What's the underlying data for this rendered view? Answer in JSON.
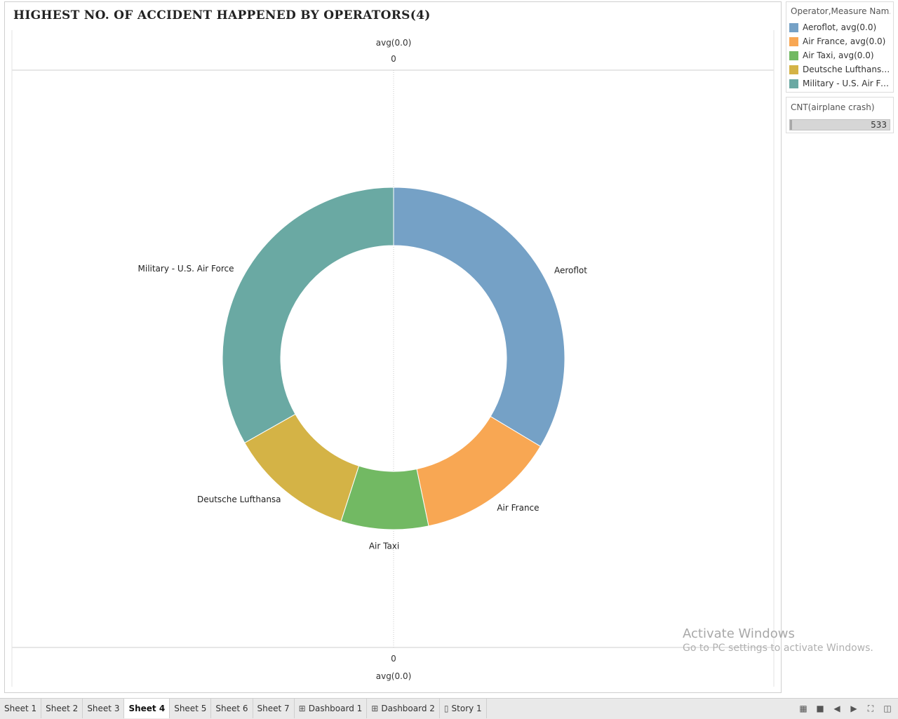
{
  "chart_data": {
    "type": "pie",
    "title": "HIGHEST NO. OF ACCIDENT HAPPENED BY OPERATORS(4)",
    "top_axis": {
      "label": "avg(0.0)",
      "tick": "0"
    },
    "bottom_axis": {
      "label": "avg(0.0)",
      "tick": "0"
    },
    "slices": [
      {
        "name": "Aeroflot",
        "value": 179,
        "color": "#75a1c6"
      },
      {
        "name": "Air France",
        "value": 70,
        "color": "#f8a753"
      },
      {
        "name": "Air Taxi",
        "value": 44,
        "color": "#72b963"
      },
      {
        "name": "Deutsche Lufthansa",
        "value": 63,
        "color": "#d4b346"
      },
      {
        "name": "Military - U.S. Air Force",
        "value": 177,
        "color": "#6aa9a3"
      }
    ],
    "legend": {
      "title": "Operator,Measure Nam...",
      "items": [
        {
          "label": "Aeroflot, avg(0.0)",
          "color": "#75a1c6"
        },
        {
          "label": "Air France, avg(0.0)",
          "color": "#f8a753"
        },
        {
          "label": "Air Taxi, avg(0.0)",
          "color": "#72b963"
        },
        {
          "label": "Deutsche Lufthansa, ...",
          "color": "#d4b346"
        },
        {
          "label": "Military - U.S. Air For...",
          "color": "#6aa9a3"
        }
      ],
      "placement": "right"
    },
    "size_legend": {
      "title": "CNT(airplane crash)",
      "value": "533"
    },
    "grid": false
  },
  "watermark": {
    "line1": "Activate Windows",
    "line2": "Go to PC settings to activate Windows."
  },
  "tabs": [
    {
      "label": "Sheet 1",
      "icon": "",
      "active": false
    },
    {
      "label": "Sheet 2",
      "icon": "",
      "active": false
    },
    {
      "label": "Sheet 3",
      "icon": "",
      "active": false
    },
    {
      "label": "Sheet 4",
      "icon": "",
      "active": true
    },
    {
      "label": "Sheet 5",
      "icon": "",
      "active": false
    },
    {
      "label": "Sheet 6",
      "icon": "",
      "active": false
    },
    {
      "label": "Sheet 7",
      "icon": "",
      "active": false
    },
    {
      "label": "Dashboard 1",
      "icon": "dashboard-icon",
      "active": false
    },
    {
      "label": "Dashboard 2",
      "icon": "dashboard-icon",
      "active": false
    },
    {
      "label": "Story 1",
      "icon": "story-icon",
      "active": false
    }
  ],
  "nav": [
    "grid-view-icon",
    "single-view-icon",
    "prev-icon",
    "next-icon",
    "fullscreen-icon",
    "present-icon"
  ]
}
